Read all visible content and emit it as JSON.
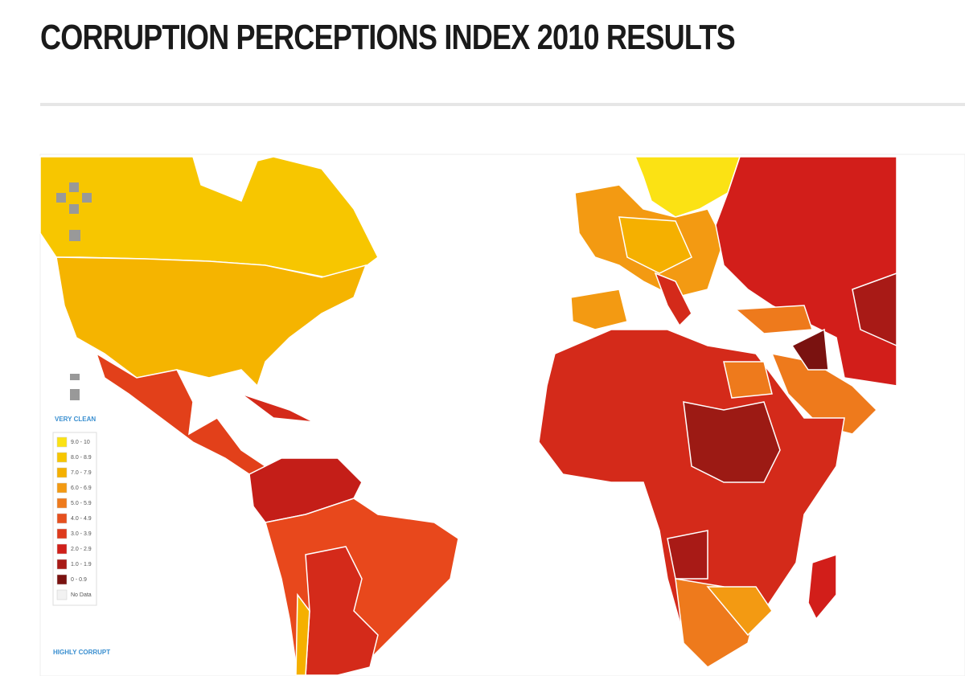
{
  "header": {
    "title": "CORRUPTION PERCEPTIONS INDEX 2010 RESULTS"
  },
  "map": {
    "legend": {
      "top_label": "VERY CLEAN",
      "items": [
        {
          "label": "9.0 - 10",
          "color": "#fbe214"
        },
        {
          "label": "8.0 - 8.9",
          "color": "#f7c600"
        },
        {
          "label": "7.0 - 7.9",
          "color": "#f5b000"
        },
        {
          "label": "6.0 - 6.9",
          "color": "#f39a12"
        },
        {
          "label": "5.0 - 5.9",
          "color": "#ee7a1c"
        },
        {
          "label": "4.0 - 4.9",
          "color": "#e6501e"
        },
        {
          "label": "3.0 - 3.9",
          "color": "#de3a1c"
        },
        {
          "label": "2.0 - 2.9",
          "color": "#d0201a"
        },
        {
          "label": "1.0 - 1.9",
          "color": "#a81a16"
        },
        {
          "label": "0 - 0.9",
          "color": "#7a1210"
        },
        {
          "label": "No Data",
          "color": "#f2f2f2"
        }
      ],
      "bottom_label": "HIGHLY CORRUPT"
    }
  }
}
